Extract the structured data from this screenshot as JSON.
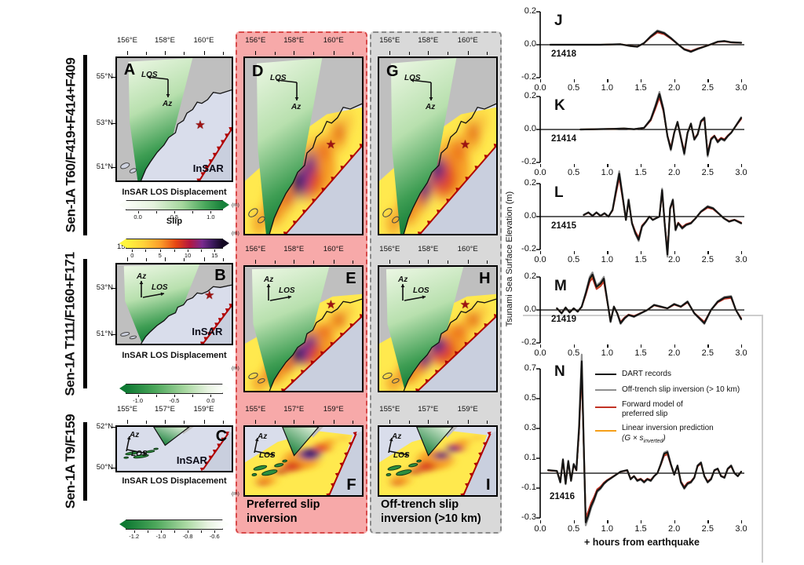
{
  "rows": [
    {
      "label": "Sen-1A T60/F419+F414+F409",
      "x_ticks": [
        "156°E",
        "158°E",
        "160°E"
      ],
      "y_ticks": [
        "55°N",
        "53°N",
        "51°N"
      ],
      "panels": {
        "insar": "A",
        "preferred": "D",
        "offtrench": "G"
      },
      "colorbars": [
        {
          "title": "InSAR LOS Displacement",
          "ticks": [
            "0.0",
            "0.5",
            "1.0"
          ],
          "unit": "(m)"
        },
        {
          "title": "Slip",
          "ticks": [
            "0",
            "5",
            "10",
            "15"
          ],
          "unit": "(m)"
        }
      ]
    },
    {
      "label": "Sen-1A T111/F160+F171",
      "x_ticks": [
        "156°E",
        "158°E",
        "160°E"
      ],
      "y_ticks": [
        "53°N",
        "51°N"
      ],
      "panels": {
        "insar": "B",
        "preferred": "E",
        "offtrench": "H"
      },
      "colorbars": [
        {
          "title": "InSAR LOS Displacement",
          "ticks": [
            "-1.0",
            "-0.5",
            "0.0"
          ],
          "unit": "(m)"
        }
      ]
    },
    {
      "label": "Sen-1A T9/F159",
      "x_ticks": [
        "155°E",
        "157°E",
        "159°E"
      ],
      "y_ticks": [
        "52°N",
        "50°N"
      ],
      "panels": {
        "insar": "C",
        "preferred": "F",
        "offtrench": "I"
      },
      "colorbars": [
        {
          "title": "InSAR LOS Displacement",
          "ticks": [
            "-1.2",
            "-1.0",
            "-0.8",
            "-0.6"
          ],
          "unit": "(m)"
        }
      ]
    }
  ],
  "map_labels": {
    "los": "LOS",
    "az": "Az",
    "insar": "InSAR"
  },
  "captions": {
    "preferred": "Preferred slip\ninversion",
    "offtrench": "Off-trench slip\ninversion (>10 km)"
  },
  "timeseries": {
    "ylabel": "Tsunami Sea Surface Elevation (m)",
    "xlabel": "+ hours from earthquake",
    "x_tick_labels": [
      "0.0",
      "0.5",
      "1.0",
      "1.5",
      "2.0",
      "2.5",
      "3.0"
    ],
    "legend": {
      "items": [
        {
          "label": "DART records",
          "color": "#141414"
        },
        {
          "label": "Off-trench slip inversion (> 10 km)",
          "color": "#8f8f8f"
        },
        {
          "label": "Forward model of\npreferred slip",
          "color": "#c23324"
        },
        {
          "label": "Linear inversion prediction",
          "formula_pre": "(G × s",
          "formula_sub": "inverted",
          "formula_post": ")",
          "color": "#f59f19"
        }
      ]
    }
  },
  "chart_data": {
    "type": "line",
    "x_range": [
      0,
      3
    ],
    "x_ticks": [
      0,
      0.5,
      1,
      1.5,
      2,
      2.5,
      3
    ],
    "series": [
      {
        "name": "DART records",
        "color": "#141414"
      },
      {
        "name": "Off-trench slip inversion (> 10 km)",
        "color": "#8f8f8f"
      },
      {
        "name": "Forward model of preferred slip",
        "color": "#c23324"
      },
      {
        "name": "Linear inversion prediction (G × s_inverted)",
        "color": "#f59f19"
      }
    ],
    "panels": [
      {
        "letter": "J",
        "station": "21418",
        "ylim": [
          -0.25,
          0.25
        ],
        "y_ticks": [
          "0.2",
          "0.0",
          "-0.2"
        ],
        "waveform": [
          [
            0.15,
            0
          ],
          [
            0.9,
            0
          ],
          [
            1.2,
            0.003
          ],
          [
            1.35,
            -0.008
          ],
          [
            1.45,
            -0.012
          ],
          [
            1.55,
            0.01
          ],
          [
            1.65,
            0.05
          ],
          [
            1.75,
            0.082
          ],
          [
            1.85,
            0.07
          ],
          [
            1.95,
            0.04
          ],
          [
            2.05,
            0.005
          ],
          [
            2.15,
            -0.028
          ],
          [
            2.25,
            -0.042
          ],
          [
            2.35,
            -0.025
          ],
          [
            2.5,
            -0.005
          ],
          [
            2.65,
            0.018
          ],
          [
            2.75,
            0.022
          ],
          [
            2.85,
            0.015
          ],
          [
            3.0,
            0.012
          ]
        ]
      },
      {
        "letter": "K",
        "station": "21414",
        "ylim": [
          -0.25,
          0.25
        ],
        "y_ticks": [
          "0.2",
          "0.0",
          "-0.2"
        ],
        "waveform": [
          [
            0.6,
            0
          ],
          [
            1.1,
            0.004
          ],
          [
            1.25,
            0.006
          ],
          [
            1.4,
            0.002
          ],
          [
            1.55,
            0.01
          ],
          [
            1.65,
            0.06
          ],
          [
            1.72,
            0.14
          ],
          [
            1.78,
            0.215
          ],
          [
            1.84,
            0.12
          ],
          [
            1.9,
            -0.04
          ],
          [
            1.95,
            -0.12
          ],
          [
            2.0,
            -0.02
          ],
          [
            2.05,
            0.045
          ],
          [
            2.1,
            -0.05
          ],
          [
            2.15,
            -0.145
          ],
          [
            2.2,
            -0.02
          ],
          [
            2.25,
            0.035
          ],
          [
            2.3,
            -0.06
          ],
          [
            2.35,
            -0.03
          ],
          [
            2.4,
            0.05
          ],
          [
            2.45,
            0.07
          ],
          [
            2.5,
            -0.155
          ],
          [
            2.55,
            -0.06
          ],
          [
            2.6,
            -0.04
          ],
          [
            2.65,
            -0.075
          ],
          [
            2.7,
            -0.055
          ],
          [
            2.75,
            -0.065
          ],
          [
            2.8,
            -0.04
          ],
          [
            2.85,
            -0.02
          ],
          [
            2.9,
            0.01
          ],
          [
            2.95,
            0.04
          ],
          [
            3.0,
            0.07
          ]
        ]
      },
      {
        "letter": "L",
        "station": "21415",
        "ylim": [
          -0.25,
          0.27
        ],
        "y_ticks": [
          "0.2",
          "0.0",
          "-0.2"
        ],
        "waveform": [
          [
            0.65,
            0.01
          ],
          [
            0.72,
            0.025
          ],
          [
            0.78,
            0.005
          ],
          [
            0.84,
            0.025
          ],
          [
            0.9,
            0.005
          ],
          [
            0.96,
            0.02
          ],
          [
            1.02,
            0.0
          ],
          [
            1.08,
            0.04
          ],
          [
            1.13,
            0.15
          ],
          [
            1.18,
            0.26
          ],
          [
            1.23,
            0.12
          ],
          [
            1.28,
            -0.02
          ],
          [
            1.32,
            0.1
          ],
          [
            1.37,
            -0.04
          ],
          [
            1.42,
            -0.1
          ],
          [
            1.47,
            -0.14
          ],
          [
            1.52,
            -0.06
          ],
          [
            1.58,
            -0.03
          ],
          [
            1.63,
            0.0
          ],
          [
            1.68,
            -0.02
          ],
          [
            1.73,
            -0.01
          ],
          [
            1.78,
            0.0
          ],
          [
            1.82,
            0.16
          ],
          [
            1.86,
            -0.05
          ],
          [
            1.9,
            -0.23
          ],
          [
            1.94,
            0.05
          ],
          [
            1.98,
            0.1
          ],
          [
            2.02,
            -0.08
          ],
          [
            2.06,
            -0.04
          ],
          [
            2.12,
            -0.07
          ],
          [
            2.18,
            -0.05
          ],
          [
            2.25,
            -0.04
          ],
          [
            2.32,
            -0.01
          ],
          [
            2.4,
            0.03
          ],
          [
            2.5,
            0.06
          ],
          [
            2.58,
            0.05
          ],
          [
            2.66,
            0.02
          ],
          [
            2.74,
            -0.01
          ],
          [
            2.82,
            -0.03
          ],
          [
            2.9,
            -0.02
          ],
          [
            3.0,
            -0.04
          ]
        ]
      },
      {
        "letter": "M",
        "station": "21419",
        "ylim": [
          -0.25,
          0.25
        ],
        "y_ticks": [
          "0.2",
          "0.0",
          "-0.2"
        ],
        "waveform": [
          [
            0.25,
            0.01
          ],
          [
            0.32,
            -0.02
          ],
          [
            0.38,
            0.015
          ],
          [
            0.44,
            -0.015
          ],
          [
            0.5,
            0.01
          ],
          [
            0.56,
            -0.01
          ],
          [
            0.62,
            0.02
          ],
          [
            0.68,
            0.1
          ],
          [
            0.74,
            0.19
          ],
          [
            0.78,
            0.215
          ],
          [
            0.84,
            0.14
          ],
          [
            0.9,
            0.16
          ],
          [
            0.95,
            0.19
          ],
          [
            1.0,
            0.06
          ],
          [
            1.05,
            -0.07
          ],
          [
            1.1,
            0.02
          ],
          [
            1.15,
            -0.02
          ],
          [
            1.2,
            -0.08
          ],
          [
            1.26,
            -0.05
          ],
          [
            1.32,
            -0.03
          ],
          [
            1.4,
            -0.04
          ],
          [
            1.5,
            -0.02
          ],
          [
            1.6,
            0.0
          ],
          [
            1.7,
            0.03
          ],
          [
            1.8,
            0.02
          ],
          [
            1.9,
            0.01
          ],
          [
            2.0,
            0.035
          ],
          [
            2.1,
            0.02
          ],
          [
            2.2,
            0.05
          ],
          [
            2.3,
            -0.02
          ],
          [
            2.4,
            -0.06
          ],
          [
            2.45,
            -0.08
          ],
          [
            2.55,
            0.0
          ],
          [
            2.65,
            0.05
          ],
          [
            2.75,
            0.075
          ],
          [
            2.85,
            0.08
          ],
          [
            2.92,
            0.0
          ],
          [
            3.0,
            -0.055
          ]
        ]
      },
      {
        "letter": "N",
        "station": "21416",
        "ylim": [
          -0.38,
          0.8
        ],
        "y_ticks": [
          "0.7",
          "0.5",
          "0.3",
          "0.1",
          "-0.1",
          "-0.3"
        ],
        "waveform": [
          [
            0.12,
            0.02
          ],
          [
            0.25,
            0.015
          ],
          [
            0.3,
            -0.06
          ],
          [
            0.34,
            0.09
          ],
          [
            0.38,
            -0.07
          ],
          [
            0.42,
            0.08
          ],
          [
            0.46,
            -0.05
          ],
          [
            0.5,
            0.06
          ],
          [
            0.54,
            0.02
          ],
          [
            0.58,
            0.3
          ],
          [
            0.62,
            0.75
          ],
          [
            0.655,
            0.1
          ],
          [
            0.68,
            -0.33
          ],
          [
            0.72,
            -0.28
          ],
          [
            0.76,
            -0.22
          ],
          [
            0.8,
            -0.18
          ],
          [
            0.85,
            -0.12
          ],
          [
            0.9,
            -0.1
          ],
          [
            0.95,
            -0.07
          ],
          [
            1.0,
            -0.05
          ],
          [
            1.1,
            -0.02
          ],
          [
            1.2,
            0.01
          ],
          [
            1.3,
            0.02
          ],
          [
            1.35,
            -0.04
          ],
          [
            1.4,
            -0.02
          ],
          [
            1.45,
            -0.05
          ],
          [
            1.5,
            -0.04
          ],
          [
            1.55,
            -0.06
          ],
          [
            1.6,
            -0.04
          ],
          [
            1.65,
            -0.05
          ],
          [
            1.7,
            -0.02
          ],
          [
            1.75,
            0.0
          ],
          [
            1.8,
            0.06
          ],
          [
            1.85,
            0.13
          ],
          [
            1.9,
            0.14
          ],
          [
            1.95,
            0.06
          ],
          [
            2.0,
            -0.01
          ],
          [
            2.05,
            0.05
          ],
          [
            2.1,
            -0.06
          ],
          [
            2.15,
            -0.1
          ],
          [
            2.2,
            -0.07
          ],
          [
            2.25,
            -0.06
          ],
          [
            2.3,
            -0.03
          ],
          [
            2.35,
            0.05
          ],
          [
            2.4,
            0.07
          ],
          [
            2.45,
            -0.02
          ],
          [
            2.5,
            -0.06
          ],
          [
            2.55,
            -0.04
          ],
          [
            2.6,
            0.02
          ],
          [
            2.65,
            0.03
          ],
          [
            2.7,
            -0.02
          ],
          [
            2.75,
            -0.03
          ],
          [
            2.8,
            0.03
          ],
          [
            2.85,
            0.05
          ],
          [
            2.9,
            0.0
          ],
          [
            2.95,
            -0.02
          ],
          [
            3.0,
            0.01
          ]
        ]
      }
    ]
  }
}
